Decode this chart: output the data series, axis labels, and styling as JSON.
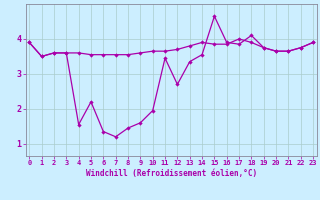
{
  "xlabel": "Windchill (Refroidissement éolien,°C)",
  "bg_color": "#cceeff",
  "grid_color": "#aacccc",
  "line_color": "#aa00aa",
  "x_ticks": [
    0,
    1,
    2,
    3,
    4,
    5,
    6,
    7,
    8,
    9,
    10,
    11,
    12,
    13,
    14,
    15,
    16,
    17,
    18,
    19,
    20,
    21,
    22,
    23
  ],
  "y_ticks": [
    1,
    2,
    3,
    4
  ],
  "ylim": [
    0.65,
    5.0
  ],
  "xlim": [
    -0.3,
    23.3
  ],
  "series1_x": [
    0,
    1,
    2,
    3,
    4,
    5,
    6,
    7,
    8,
    9,
    10,
    11,
    12,
    13,
    14,
    15,
    16,
    17,
    18,
    19,
    20,
    21,
    22,
    23
  ],
  "series1_y": [
    3.9,
    3.5,
    3.6,
    3.6,
    3.6,
    3.55,
    3.55,
    3.55,
    3.55,
    3.6,
    3.65,
    3.65,
    3.7,
    3.8,
    3.9,
    3.85,
    3.85,
    4.0,
    3.9,
    3.75,
    3.65,
    3.65,
    3.75,
    3.9
  ],
  "series2_x": [
    0,
    1,
    2,
    3,
    4,
    5,
    6,
    7,
    8,
    9,
    10,
    11,
    12,
    13,
    14,
    15,
    16,
    17,
    18,
    19,
    20,
    21,
    22,
    23
  ],
  "series2_y": [
    3.9,
    3.5,
    3.6,
    3.6,
    1.55,
    2.2,
    1.35,
    1.2,
    1.45,
    1.6,
    1.95,
    3.45,
    2.7,
    3.35,
    3.55,
    4.65,
    3.9,
    3.85,
    4.1,
    3.75,
    3.65,
    3.65,
    3.75,
    3.9
  ],
  "marker_size": 2.2,
  "linewidth": 0.9,
  "xlabel_fontsize": 5.5,
  "tick_fontsize": 5.0
}
